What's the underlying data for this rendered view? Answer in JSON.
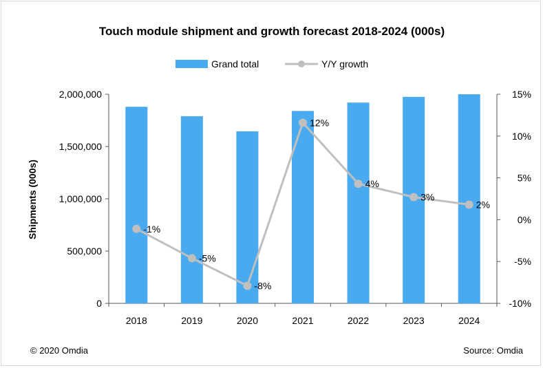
{
  "chart_data": {
    "type": "bar",
    "title": "Touch module shipment and growth forecast 2018-2024 (000s)",
    "categories": [
      "2018",
      "2019",
      "2020",
      "2021",
      "2022",
      "2023",
      "2024"
    ],
    "series": [
      {
        "name": "Grand total",
        "type": "bar",
        "axis": "left",
        "color": "#4aaaf0",
        "values": [
          1880000,
          1790000,
          1645000,
          1840000,
          1920000,
          1975000,
          2000000
        ]
      },
      {
        "name": "Y/Y growth",
        "type": "line",
        "axis": "right",
        "color": "#bfbfbf",
        "values": [
          -1.1,
          -4.6,
          -7.9,
          11.6,
          4.3,
          2.7,
          1.8
        ],
        "labels": [
          "-1%",
          "-5%",
          "-8%",
          "12%",
          "4%",
          "3%",
          "2%"
        ]
      }
    ],
    "ylabel": "Shipments (000s)",
    "ylim": [
      0,
      2000000
    ],
    "yticks": [
      "0",
      "500,000",
      "1,000,000",
      "1,500,000",
      "2,000,000"
    ],
    "y2lim": [
      -10,
      15
    ],
    "y2ticks": [
      "-10%",
      "-5%",
      "0%",
      "5%",
      "10%",
      "15%"
    ],
    "legend_position": "top-center",
    "grid": false
  },
  "footer": {
    "copyright": "© 2020 Omdia",
    "source": "Source: Omdia"
  }
}
